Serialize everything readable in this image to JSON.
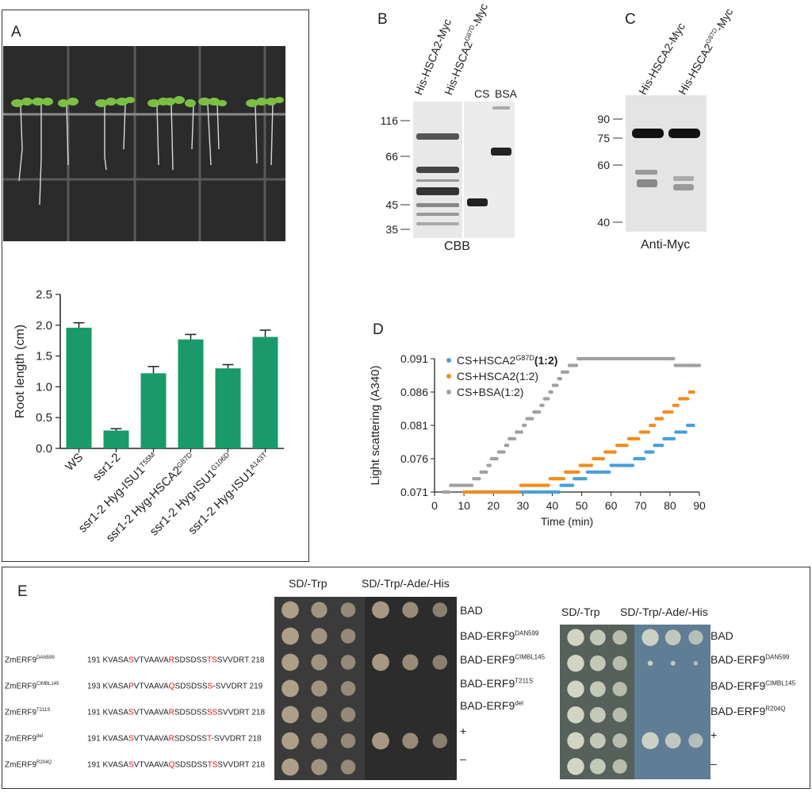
{
  "panels": {
    "a": "A",
    "b": "B",
    "c": "C",
    "d": "D",
    "e": "E"
  },
  "panel_b": {
    "lanes": [
      "His-HSCA2-Myc",
      "His-HSCA2",
      "CS",
      "BSA"
    ],
    "lane2_sup": "G87D",
    "lane2_suffix": "-Myc",
    "mw": [
      "116",
      "66",
      "45",
      "35"
    ],
    "caption": "CBB"
  },
  "panel_c": {
    "lanes": [
      "His-HSCA2-Myc",
      "His-HSCA2"
    ],
    "lane2_sup": "G87D",
    "lane2_suffix": "-Myc",
    "mw": [
      "90",
      "75",
      "60",
      "40"
    ],
    "caption": "Anti-Myc"
  },
  "chart_data": [
    {
      "type": "bar",
      "ylabel": "Root length (cm)",
      "categories": [
        "WS",
        "ssr1-2",
        "ssr1-2 Hyg-ISU1T55M",
        "ssr1-2 Hyg-HSCA2G87D",
        "ssr1-2 Hyg-ISU1G106D",
        "ssr1-2 Hyg-ISU1A143T"
      ],
      "category_labels": [
        {
          "base": "WS",
          "sup": ""
        },
        {
          "base": "ssr1-2",
          "sup": ""
        },
        {
          "base": "ssr1-2 Hyg-ISU1",
          "sup": "T55M"
        },
        {
          "base": "ssr1-2 Hyg-HSCA2",
          "sup": "G87D"
        },
        {
          "base": "ssr1-2 Hyg-ISU1",
          "sup": "G106D"
        },
        {
          "base": "ssr1-2 Hyg-ISU1",
          "sup": "A143T"
        }
      ],
      "values": [
        1.96,
        0.29,
        1.22,
        1.77,
        1.3,
        1.81
      ],
      "errors": [
        0.08,
        0.03,
        0.11,
        0.08,
        0.06,
        0.11
      ],
      "ylim": [
        0,
        2.5
      ],
      "yticks": [
        "0.0",
        "0.5",
        "1.0",
        "1.5",
        "2.0",
        "2.5"
      ],
      "color": "#1a9a6a"
    },
    {
      "type": "scatter",
      "xlabel": "Time (min)",
      "ylabel": "Light scattering (A340)",
      "xlim": [
        0,
        90
      ],
      "ylim": [
        0.071,
        0.091
      ],
      "xticks": [
        "0",
        "10",
        "20",
        "30",
        "40",
        "50",
        "60",
        "70",
        "80",
        "90"
      ],
      "yticks": [
        "0.071",
        "0.076",
        "0.081",
        "0.086",
        "0.091"
      ],
      "legend_position": "top-left",
      "series": [
        {
          "name": "CS+HSCA2G87D(1:2)",
          "legend_base": "CS+HSCA2",
          "legend_sup": "G87D",
          "legend_tail": "(1:2)",
          "color": "#4a9fd8",
          "x": [
            13,
            41,
            45,
            50,
            54,
            58,
            62,
            66,
            70,
            73,
            76,
            80,
            84,
            88
          ],
          "y": [
            0.071,
            0.071,
            0.072,
            0.073,
            0.074,
            0.074,
            0.075,
            0.075,
            0.076,
            0.077,
            0.078,
            0.079,
            0.08,
            0.081
          ]
        },
        {
          "name": "CS+HSCA2(1:2)",
          "legend_base": "CS+HSCA2(1:2)",
          "legend_sup": "",
          "legend_tail": "",
          "color": "#f08c1e",
          "x": [
            10,
            28,
            30,
            36,
            42,
            47,
            52,
            56,
            60,
            64,
            68,
            72,
            76,
            80,
            84,
            88
          ],
          "y": [
            0.071,
            0.071,
            0.072,
            0.072,
            0.073,
            0.074,
            0.075,
            0.076,
            0.077,
            0.078,
            0.079,
            0.08,
            0.082,
            0.083,
            0.085,
            0.086
          ]
        },
        {
          "name": "CS+BSA(1:2)",
          "legend_base": "CS+BSA(1:2)",
          "legend_sup": "",
          "legend_tail": "",
          "color": "#a0a0a0",
          "x": [
            3,
            8,
            12,
            14,
            17,
            20,
            23,
            26,
            29,
            32,
            35,
            38,
            41,
            44,
            47,
            50,
            60,
            70,
            80,
            83,
            90
          ],
          "y": [
            0.071,
            0.072,
            0.072,
            0.073,
            0.074,
            0.076,
            0.077,
            0.079,
            0.08,
            0.082,
            0.083,
            0.085,
            0.087,
            0.089,
            0.09,
            0.091,
            0.091,
            0.091,
            0.091,
            0.09,
            0.09
          ]
        }
      ]
    }
  ],
  "panel_e": {
    "plate_headers": [
      "SD/-Trp",
      "SD/-Trp/-Ade/-His"
    ],
    "sequences": [
      {
        "name": "ZmERF9",
        "sup": "DAN599",
        "start": "191",
        "parts": [
          "KVASA",
          "S",
          "VTVAAVA",
          "R",
          "SDSDSS",
          "TS",
          "SVVDRT"
        ],
        "end": "218"
      },
      {
        "name": "ZmERF9",
        "sup": "CIMBL145",
        "start": "193",
        "parts": [
          "KVASA",
          "P",
          "VTVAAVA",
          "Q",
          "SDSDSS",
          "S",
          "-SVVDRT"
        ],
        "end": "219"
      },
      {
        "name": "ZmERF9",
        "sup": "T211S",
        "start": "191",
        "parts": [
          "KVASA",
          "S",
          "VTVAAVA",
          "R",
          "SDSDSS",
          "SS",
          "SVVDRT"
        ],
        "end": "218"
      },
      {
        "name": "ZmERF9",
        "sup": "del",
        "start": "191",
        "parts": [
          "KVASA",
          "S",
          "VTVAAVA",
          "R",
          "SDSDSS",
          "T",
          "-SVVDRT"
        ],
        "end": "218"
      },
      {
        "name": "ZmERF9",
        "sup": "R204Q",
        "start": "191",
        "parts": [
          "KVASA",
          "S",
          "VTVAAVA",
          "Q",
          "SDSDSS",
          "TS",
          "SVVDRT"
        ],
        "end": "218"
      }
    ],
    "left_strains": [
      {
        "base": "BAD",
        "sup": ""
      },
      {
        "base": "BAD-ERF9",
        "sup": "DAN599"
      },
      {
        "base": "BAD-ERF9",
        "sup": "CIMBL145"
      },
      {
        "base": "BAD-ERF9",
        "sup": "T211S"
      },
      {
        "base": "BAD-ERF9",
        "sup": "del"
      },
      {
        "base": "+",
        "sup": ""
      },
      {
        "base": "–",
        "sup": ""
      }
    ],
    "right_strains": [
      {
        "base": "BAD",
        "sup": ""
      },
      {
        "base": "BAD-ERF9",
        "sup": "DAN599"
      },
      {
        "base": "BAD-ERF9",
        "sup": "CIMBL145"
      },
      {
        "base": "BAD-ERF9",
        "sup": "R204Q"
      },
      {
        "base": "+",
        "sup": ""
      },
      {
        "base": "–",
        "sup": ""
      }
    ]
  }
}
